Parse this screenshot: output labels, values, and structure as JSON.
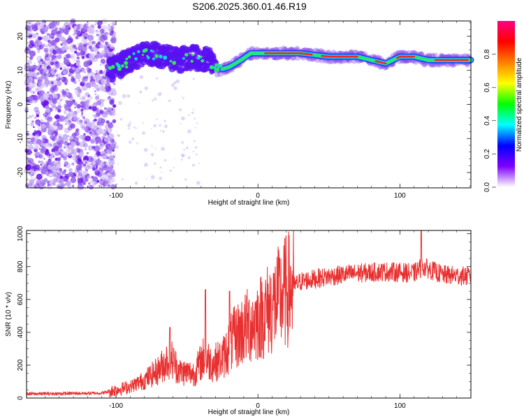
{
  "title": "S206.2025.360.01.46.R19",
  "chart_data": [
    {
      "type": "heatmap",
      "xlabel": "Height of straight line (km)",
      "ylabel": "Frequency (Hz)",
      "xlim": [
        -163,
        150
      ],
      "ylim": [
        -24.5,
        24.5
      ],
      "xticks": [
        -100,
        0,
        100
      ],
      "yticks": [
        -20,
        -10,
        0,
        10,
        20
      ],
      "xtick_labels": [
        "-100",
        "0",
        "100"
      ],
      "ytick_labels": [
        "-20",
        "-10",
        "0",
        "10",
        "20"
      ],
      "ridge": [
        {
          "x": -105,
          "y": 10
        },
        {
          "x": -95,
          "y": 12
        },
        {
          "x": -85,
          "y": 14
        },
        {
          "x": -75,
          "y": 15
        },
        {
          "x": -65,
          "y": 14
        },
        {
          "x": -55,
          "y": 13
        },
        {
          "x": -45,
          "y": 14
        },
        {
          "x": -35,
          "y": 13
        },
        {
          "x": -28,
          "y": 10
        },
        {
          "x": -20,
          "y": 11
        },
        {
          "x": -12,
          "y": 13
        },
        {
          "x": -5,
          "y": 15
        },
        {
          "x": 0,
          "y": 15
        },
        {
          "x": 10,
          "y": 15
        },
        {
          "x": 30,
          "y": 15
        },
        {
          "x": 50,
          "y": 14
        },
        {
          "x": 70,
          "y": 14
        },
        {
          "x": 80,
          "y": 13
        },
        {
          "x": 90,
          "y": 12
        },
        {
          "x": 100,
          "y": 14
        },
        {
          "x": 110,
          "y": 14
        },
        {
          "x": 120,
          "y": 13
        },
        {
          "x": 135,
          "y": 13
        },
        {
          "x": 150,
          "y": 13
        }
      ],
      "colorbar": {
        "label": "Normalized spectral amplitude",
        "range": [
          0,
          1
        ],
        "ticks": [
          0.0,
          0.2,
          0.4,
          0.6,
          0.8
        ],
        "tick_labels": [
          "0.0",
          "0.2",
          "0.4",
          "0.6",
          "0.8"
        ],
        "colors": [
          "#ffffff",
          "#7f00ff",
          "#0000ff",
          "#00ffff",
          "#00ff00",
          "#ffff00",
          "#ff8000",
          "#ff0000",
          "#ff0080"
        ]
      }
    },
    {
      "type": "line",
      "xlabel": "Height of straight line (km)",
      "ylabel": "SNR (10 * v/v)",
      "xlim": [
        -163,
        150
      ],
      "ylim": [
        0,
        1020
      ],
      "xticks": [
        -100,
        0,
        100
      ],
      "yticks": [
        0,
        200,
        400,
        600,
        800,
        1000
      ],
      "xtick_labels": [
        "-100",
        "0",
        "100"
      ],
      "ytick_labels": [
        "0",
        "200",
        "400",
        "600",
        "800",
        "1000"
      ],
      "color": "#e83030",
      "envelope": [
        {
          "x": -163,
          "y": 25
        },
        {
          "x": -110,
          "y": 30
        },
        {
          "x": -100,
          "y": 50
        },
        {
          "x": -90,
          "y": 70
        },
        {
          "x": -80,
          "y": 110
        },
        {
          "x": -70,
          "y": 170
        },
        {
          "x": -62,
          "y": 250
        },
        {
          "x": -55,
          "y": 160
        },
        {
          "x": -45,
          "y": 150
        },
        {
          "x": -38,
          "y": 250
        },
        {
          "x": -32,
          "y": 210
        },
        {
          "x": -25,
          "y": 240
        },
        {
          "x": -18,
          "y": 350
        },
        {
          "x": -10,
          "y": 420
        },
        {
          "x": 0,
          "y": 480
        },
        {
          "x": 10,
          "y": 560
        },
        {
          "x": 20,
          "y": 650
        },
        {
          "x": 30,
          "y": 710
        },
        {
          "x": 50,
          "y": 740
        },
        {
          "x": 70,
          "y": 760
        },
        {
          "x": 90,
          "y": 770
        },
        {
          "x": 110,
          "y": 760
        },
        {
          "x": 116,
          "y": 800
        },
        {
          "x": 130,
          "y": 750
        },
        {
          "x": 150,
          "y": 740
        }
      ],
      "peaks": [
        {
          "x": -62,
          "y": 430
        },
        {
          "x": -37,
          "y": 660
        },
        {
          "x": -20,
          "y": 650
        },
        {
          "x": 115,
          "y": 1020
        }
      ]
    }
  ]
}
